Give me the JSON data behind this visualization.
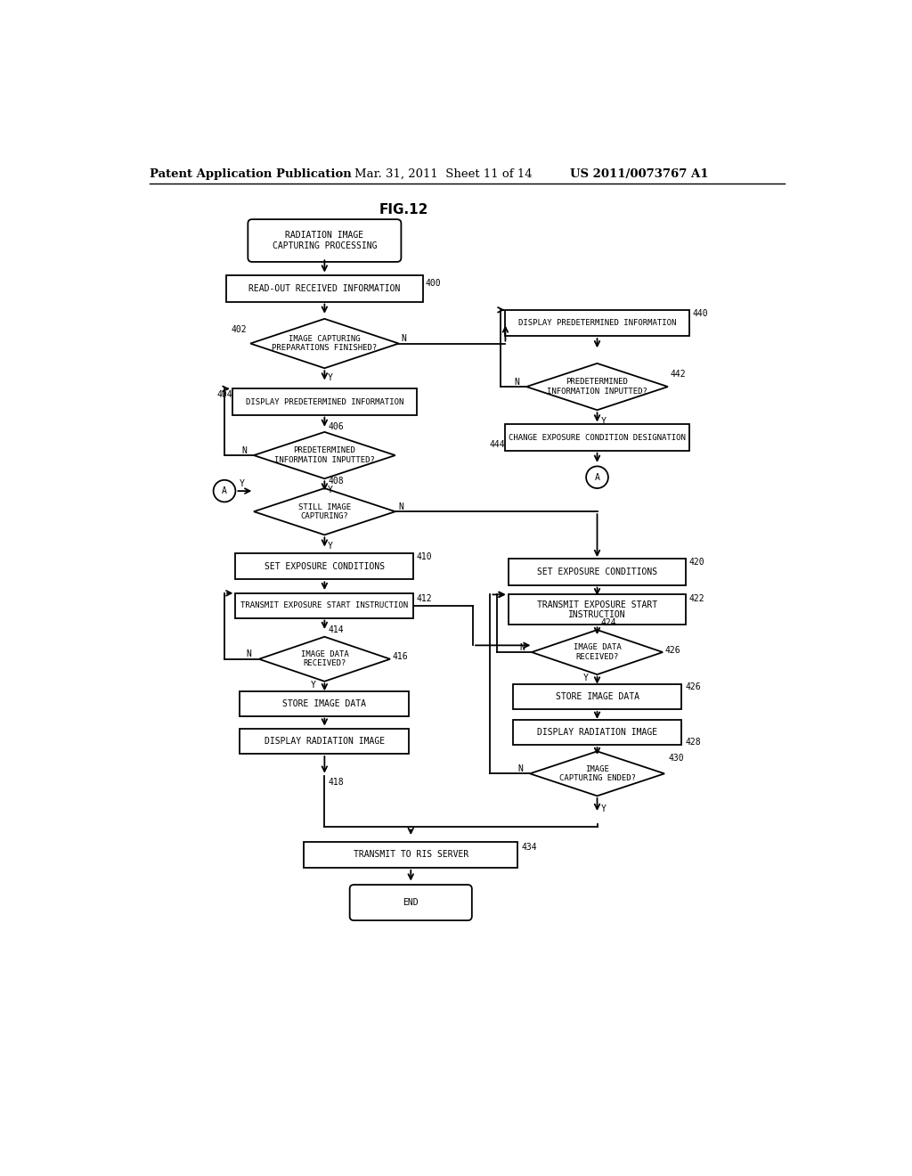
{
  "title": "FIG.12",
  "header_left": "Patent Application Publication",
  "header_mid": "Mar. 31, 2011  Sheet 11 of 14",
  "header_right": "US 2011/0073767 A1",
  "bg_color": "#ffffff",
  "line_color": "#000000",
  "font_color": "#000000",
  "fs": 7.0,
  "fs_small": 6.5,
  "fs_header": 9.5,
  "fs_title": 11,
  "lw": 1.3
}
